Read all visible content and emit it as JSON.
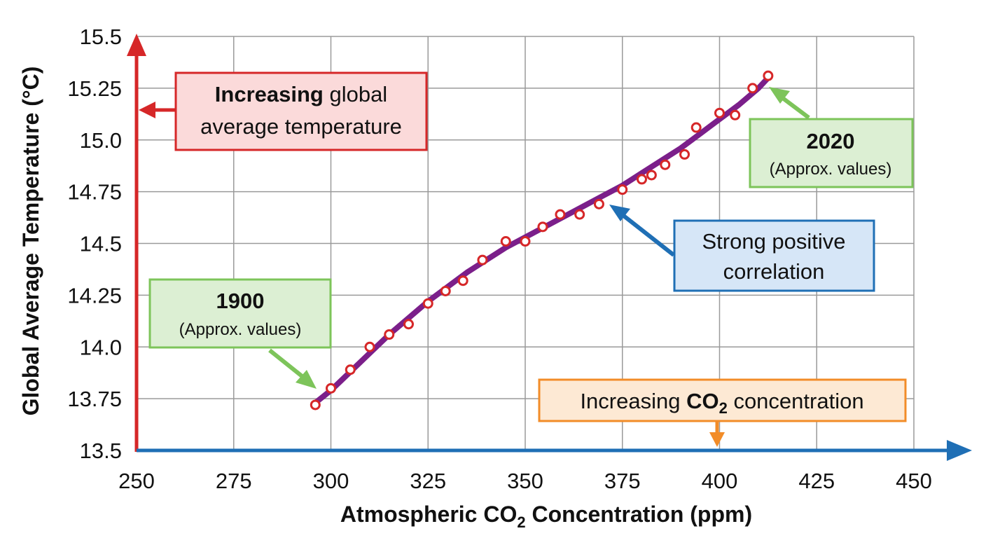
{
  "chart_data": {
    "type": "scatter",
    "xlabel_main": "Atmospheric CO",
    "xlabel_sub": "2",
    "xlabel_end": " Concentration (ppm)",
    "ylabel": "Global Average Temperature (°C)",
    "xlim": [
      250,
      450
    ],
    "ylim": [
      13.5,
      15.5
    ],
    "x_ticks": [
      "250",
      "275",
      "300",
      "325",
      "350",
      "375",
      "400",
      "425",
      "450"
    ],
    "y_ticks": [
      "13.5",
      "13.75",
      "14.0",
      "14.25",
      "14.5",
      "14.75",
      "15.0",
      "15.25",
      "15.5"
    ],
    "grid": true,
    "series": [
      {
        "marker": "circle",
        "color": "#d62728",
        "x": [
          296,
          300,
          305,
          310,
          315,
          320,
          325,
          329.5,
          334,
          339,
          345,
          350,
          354.5,
          359,
          364,
          369,
          375,
          380,
          382.5,
          386,
          391,
          394,
          400,
          404,
          408.5,
          412.5
        ],
        "y": [
          13.72,
          13.8,
          13.89,
          14.0,
          14.06,
          14.11,
          14.21,
          14.27,
          14.32,
          14.42,
          14.51,
          14.51,
          14.58,
          14.64,
          14.64,
          14.69,
          14.76,
          14.81,
          14.83,
          14.88,
          14.93,
          15.06,
          15.13,
          15.12,
          15.25,
          15.31
        ]
      },
      {
        "type": "trend",
        "color": "#7b1f8a",
        "x": [
          296,
          300,
          305,
          310,
          315,
          320,
          325,
          330,
          335,
          340,
          345,
          350,
          355,
          360,
          365,
          370,
          375,
          380,
          385,
          390,
          395,
          400,
          405,
          410,
          413
        ],
        "y": [
          13.73,
          13.79,
          13.88,
          13.97,
          14.06,
          14.14,
          14.22,
          14.29,
          14.36,
          14.42,
          14.48,
          14.53,
          14.58,
          14.63,
          14.68,
          14.73,
          14.78,
          14.84,
          14.9,
          14.96,
          15.03,
          15.1,
          15.17,
          15.25,
          15.31
        ]
      }
    ],
    "annotations": {
      "temp": {
        "bold": "Increasing",
        "rest": " global",
        "line2": "average temperature",
        "color": "#d62728"
      },
      "co2": {
        "pre": "Increasing ",
        "bold": "CO",
        "sub": "2",
        "post": " concentration",
        "color": "#f28c28"
      },
      "corr": {
        "line1": "Strong positive",
        "line2": "correlation",
        "color": "#1f6fb5"
      },
      "start": {
        "year": "1900",
        "note": "(Approx. values)",
        "color": "#7dc45a"
      },
      "end": {
        "year": "2020",
        "note": "(Approx. values)",
        "color": "#7dc45a"
      }
    }
  }
}
